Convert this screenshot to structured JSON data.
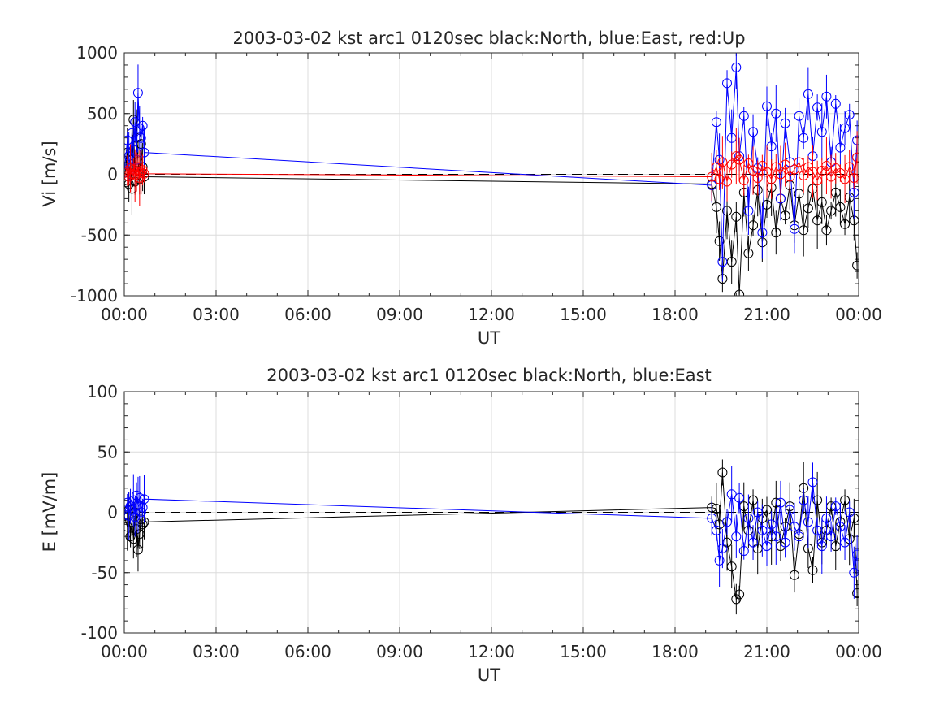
{
  "chart_data": [
    {
      "type": "scatter",
      "title": "2003-03-02 kst arc1 0120sec black:North, blue:East, red:Up",
      "xlabel": "UT",
      "ylabel": "Vi [m/s]",
      "xlim": [
        0,
        24
      ],
      "ylim": [
        -1000,
        1000
      ],
      "x_tick_labels": [
        "00:00",
        "03:00",
        "06:00",
        "09:00",
        "12:00",
        "15:00",
        "18:00",
        "21:00",
        "00:00"
      ],
      "y_tick_labels": [
        "-1000",
        "-500",
        "0",
        "500",
        "1000"
      ],
      "y_ticks": [
        -1000,
        -500,
        0,
        500,
        1000
      ],
      "grid": true,
      "reference_line": 0,
      "series": [
        {
          "name": "North",
          "color": "#000000",
          "x": [
            0.0,
            0.1,
            0.15,
            0.2,
            0.25,
            0.3,
            0.35,
            0.4,
            0.45,
            0.5,
            0.55,
            0.6,
            0.65,
            19.2,
            19.35,
            19.45,
            19.55,
            19.7,
            19.85,
            20.0,
            20.1,
            20.25,
            20.4,
            20.55,
            20.7,
            20.85,
            21.0,
            21.15,
            21.3,
            21.45,
            21.6,
            21.75,
            21.9,
            22.05,
            22.2,
            22.35,
            22.5,
            22.65,
            22.8,
            22.95,
            23.1,
            23.25,
            23.4,
            23.55,
            23.7,
            23.85,
            23.95
          ],
          "values": [
            -50,
            180,
            -80,
            120,
            -120,
            450,
            -60,
            300,
            100,
            -40,
            250,
            60,
            -20,
            -80,
            -270,
            -550,
            -860,
            -300,
            -720,
            -350,
            -990,
            -150,
            -650,
            -420,
            -130,
            -560,
            -250,
            -110,
            -480,
            -200,
            -340,
            -90,
            -420,
            -160,
            -460,
            -280,
            -120,
            -380,
            -230,
            -460,
            -300,
            -150,
            -270,
            -410,
            -190,
            -380,
            -750
          ]
        },
        {
          "name": "East",
          "color": "#0000ff",
          "x": [
            0.0,
            0.1,
            0.15,
            0.2,
            0.25,
            0.3,
            0.35,
            0.4,
            0.45,
            0.5,
            0.55,
            0.6,
            0.65,
            19.2,
            19.35,
            19.45,
            19.55,
            19.7,
            19.85,
            20.0,
            20.1,
            20.25,
            20.4,
            20.55,
            20.7,
            20.85,
            21.0,
            21.15,
            21.3,
            21.45,
            21.6,
            21.75,
            21.9,
            22.05,
            22.2,
            22.35,
            22.5,
            22.65,
            22.8,
            22.95,
            23.1,
            23.25,
            23.4,
            23.55,
            23.7,
            23.85,
            23.95
          ],
          "values": [
            20,
            280,
            150,
            60,
            340,
            200,
            430,
            120,
            670,
            380,
            300,
            400,
            180,
            -90,
            430,
            120,
            -720,
            750,
            300,
            880,
            150,
            480,
            -300,
            350,
            50,
            -480,
            560,
            230,
            500,
            -200,
            420,
            100,
            -450,
            480,
            300,
            660,
            150,
            550,
            350,
            640,
            100,
            580,
            220,
            380,
            490,
            -150,
            280
          ]
        },
        {
          "name": "Up",
          "color": "#ff0000",
          "x": [
            0.0,
            0.1,
            0.15,
            0.2,
            0.25,
            0.3,
            0.35,
            0.4,
            0.45,
            0.5,
            0.55,
            0.6,
            0.65,
            19.2,
            19.35,
            19.45,
            19.55,
            19.7,
            19.85,
            20.0,
            20.1,
            20.25,
            20.4,
            20.55,
            20.7,
            20.85,
            21.0,
            21.15,
            21.3,
            21.45,
            21.6,
            21.75,
            21.9,
            22.05,
            22.2,
            22.35,
            22.5,
            22.65,
            22.8,
            22.95,
            23.1,
            23.25,
            23.4,
            23.55,
            23.7,
            23.85,
            23.95
          ],
          "values": [
            10,
            30,
            -20,
            50,
            0,
            40,
            -10,
            20,
            60,
            -30,
            15,
            35,
            5,
            -20,
            60,
            -40,
            100,
            -60,
            80,
            150,
            120,
            -50,
            90,
            30,
            -30,
            70,
            20,
            -40,
            60,
            0,
            80,
            -20,
            40,
            100,
            -10,
            60,
            20,
            -50,
            30,
            70,
            -20,
            50,
            10,
            -40,
            60,
            -30,
            140
          ]
        }
      ]
    },
    {
      "type": "scatter",
      "title": "2003-03-02 kst arc1 0120sec black:North, blue:East",
      "xlabel": "UT",
      "ylabel": "E [mV/m]",
      "xlim": [
        0,
        24
      ],
      "ylim": [
        -100,
        100
      ],
      "x_tick_labels": [
        "00:00",
        "03:00",
        "06:00",
        "09:00",
        "12:00",
        "15:00",
        "18:00",
        "21:00",
        "00:00"
      ],
      "y_tick_labels": [
        "-100",
        "-50",
        "0",
        "50",
        "100"
      ],
      "y_ticks": [
        -100,
        -50,
        0,
        50,
        100
      ],
      "grid": true,
      "reference_line": 0,
      "series": [
        {
          "name": "North",
          "color": "#000000",
          "x": [
            0.0,
            0.1,
            0.15,
            0.2,
            0.25,
            0.3,
            0.35,
            0.4,
            0.45,
            0.5,
            0.55,
            0.6,
            0.65,
            19.2,
            19.35,
            19.45,
            19.55,
            19.7,
            19.85,
            20.0,
            20.1,
            20.25,
            20.4,
            20.55,
            20.7,
            20.85,
            21.0,
            21.15,
            21.3,
            21.45,
            21.6,
            21.75,
            21.9,
            22.05,
            22.2,
            22.35,
            22.5,
            22.65,
            22.8,
            22.95,
            23.1,
            23.25,
            23.4,
            23.55,
            23.7,
            23.85,
            23.95
          ],
          "values": [
            -3,
            -12,
            2,
            -20,
            -8,
            -22,
            0,
            -14,
            -31,
            -18,
            -6,
            -10,
            -8,
            4,
            3,
            -10,
            33,
            -25,
            -45,
            -72,
            -68,
            5,
            -15,
            10,
            -30,
            -5,
            2,
            -20,
            8,
            -28,
            -12,
            5,
            -52,
            -18,
            20,
            -30,
            -48,
            10,
            -25,
            -15,
            5,
            -28,
            -8,
            10,
            -22,
            -5,
            -67
          ]
        },
        {
          "name": "East",
          "color": "#0000ff",
          "x": [
            0.0,
            0.1,
            0.15,
            0.2,
            0.25,
            0.3,
            0.35,
            0.4,
            0.45,
            0.5,
            0.55,
            0.6,
            0.65,
            19.2,
            19.35,
            19.45,
            19.55,
            19.7,
            19.85,
            20.0,
            20.1,
            20.25,
            20.4,
            20.55,
            20.7,
            20.85,
            21.0,
            21.15,
            21.3,
            21.45,
            21.6,
            21.75,
            21.9,
            22.05,
            22.2,
            22.35,
            22.5,
            22.65,
            22.8,
            22.95,
            23.1,
            23.25,
            23.4,
            23.55,
            23.7,
            23.85,
            23.95
          ],
          "values": [
            -2,
            8,
            -3,
            5,
            2,
            10,
            -4,
            14,
            6,
            12,
            0,
            4,
            11,
            -5,
            -15,
            -40,
            -30,
            -8,
            15,
            -20,
            12,
            -32,
            -5,
            -25,
            0,
            -15,
            -28,
            -10,
            -20,
            8,
            -25,
            2,
            -12,
            -20,
            10,
            -8,
            25,
            -15,
            -28,
            -5,
            -20,
            5,
            -12,
            -25,
            0,
            -50,
            -35
          ]
        }
      ]
    }
  ]
}
